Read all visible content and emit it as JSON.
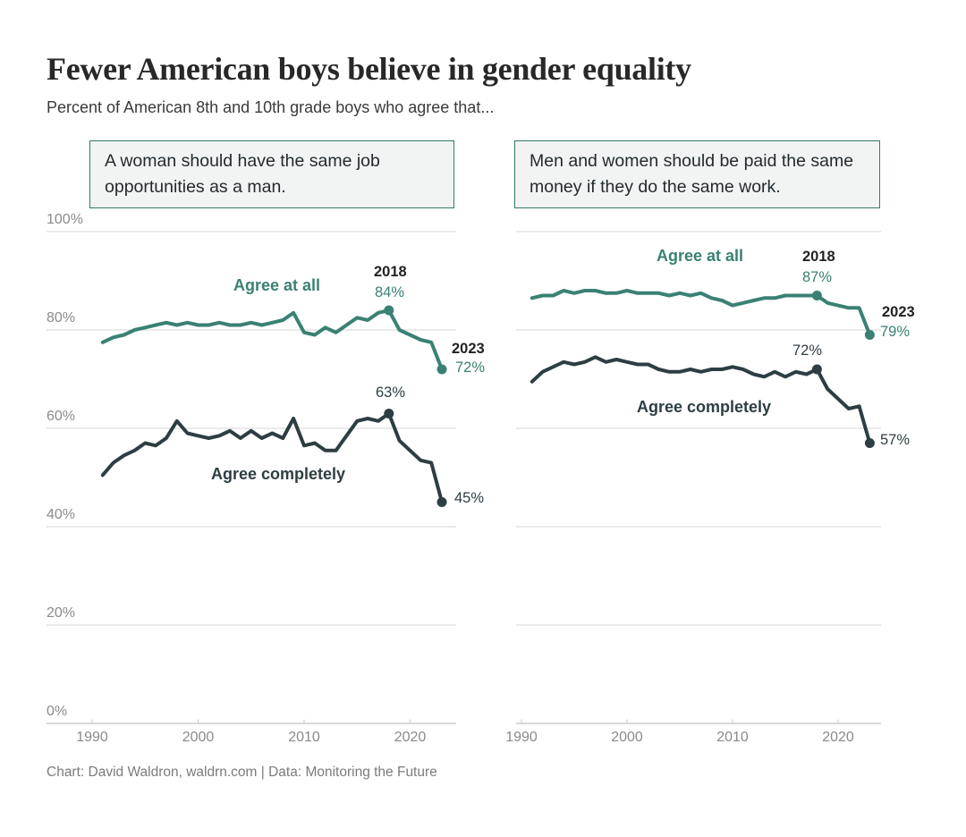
{
  "page": {
    "title": "Fewer American boys believe in gender equality",
    "subtitle": "Percent of American 8th and 10th grade boys who agree that...",
    "footer": "Chart: David Waldron, waldrn.com | Data: Monitoring the Future"
  },
  "colors": {
    "agree_at_all": "#3a8173",
    "agree_completely": "#2d3e43",
    "annotation_year": "#222222",
    "grid": "#d4d4d4",
    "baseline": "#b0b0b0",
    "tick_mark": "#c9c9c9",
    "axis_label": "#8a8a8a",
    "question_border": "#35786c",
    "question_bg": "#f2f4f4",
    "title": "#282828",
    "subtitle": "#3a3a3a",
    "footer": "#7b7b7b"
  },
  "chart_data": [
    {
      "type": "line",
      "question": "A woman should have the same job opportunities as a man.",
      "ylim": [
        0,
        100
      ],
      "yticks": [
        "100%",
        "80%",
        "60%",
        "40%",
        "20%",
        "0%"
      ],
      "xticks": [
        "1990",
        "2000",
        "2010",
        "2020"
      ],
      "x": [
        1991,
        1992,
        1993,
        1994,
        1995,
        1996,
        1997,
        1998,
        1999,
        2000,
        2001,
        2002,
        2003,
        2004,
        2005,
        2006,
        2007,
        2008,
        2009,
        2010,
        2011,
        2012,
        2013,
        2014,
        2015,
        2016,
        2017,
        2018,
        2019,
        2021,
        2022,
        2023
      ],
      "series": [
        {
          "name": "Agree at all",
          "color_key": "agree_at_all",
          "values": [
            77.5,
            78.5,
            79,
            80,
            80.5,
            81,
            81.5,
            81,
            81.5,
            81,
            81,
            81.5,
            81,
            81,
            81.5,
            81,
            81.5,
            82,
            83.5,
            79.5,
            79,
            80.5,
            79.5,
            81,
            82.5,
            82,
            83.5,
            84,
            80,
            78,
            77.5,
            72
          ],
          "annotations": {
            "peak_year": "2018",
            "peak_value": "84%",
            "end_year": "2023",
            "end_value": "72%"
          }
        },
        {
          "name": "Agree completely",
          "color_key": "agree_completely",
          "values": [
            50.5,
            53,
            54.5,
            55.5,
            57,
            56.5,
            58,
            61.5,
            59,
            58.5,
            58,
            58.5,
            59.5,
            58,
            59.5,
            58,
            59,
            58,
            62,
            56.5,
            57,
            55.5,
            55.5,
            58.5,
            61.5,
            62,
            61.5,
            63,
            57.5,
            53.5,
            53,
            45
          ],
          "annotations": {
            "peak_value": "63%",
            "end_value": "45%"
          }
        }
      ]
    },
    {
      "type": "line",
      "question": "Men and women should be paid the same money if they do the same work.",
      "ylim": [
        0,
        100
      ],
      "yticks": [
        "100%",
        "80%",
        "60%",
        "40%",
        "20%",
        "0%"
      ],
      "xticks": [
        "1990",
        "2000",
        "2010",
        "2020"
      ],
      "x": [
        1991,
        1992,
        1993,
        1994,
        1995,
        1996,
        1997,
        1998,
        1999,
        2000,
        2001,
        2002,
        2003,
        2004,
        2005,
        2006,
        2007,
        2008,
        2009,
        2010,
        2011,
        2012,
        2013,
        2014,
        2015,
        2016,
        2017,
        2018,
        2019,
        2021,
        2022,
        2023
      ],
      "series": [
        {
          "name": "Agree at all",
          "color_key": "agree_at_all",
          "values": [
            86.5,
            87,
            87,
            88,
            87.5,
            88,
            88,
            87.5,
            87.5,
            88,
            87.5,
            87.5,
            87.5,
            87,
            87.5,
            87,
            87.5,
            86.5,
            86,
            85,
            85.5,
            86,
            86.5,
            86.5,
            87,
            87,
            87,
            87,
            85.5,
            84.5,
            84.5,
            79
          ],
          "annotations": {
            "peak_year": "2018",
            "peak_value": "87%",
            "end_year": "2023",
            "end_value": "79%"
          }
        },
        {
          "name": "Agree completely",
          "color_key": "agree_completely",
          "values": [
            69.5,
            71.5,
            72.5,
            73.5,
            73,
            73.5,
            74.5,
            73.5,
            74,
            73.5,
            73,
            73,
            72,
            71.5,
            71.5,
            72,
            71.5,
            72,
            72,
            72.5,
            72,
            71,
            70.5,
            71.5,
            70.5,
            71.5,
            71,
            72,
            68,
            64,
            64.5,
            57
          ],
          "annotations": {
            "peak_value": "72%",
            "end_value": "57%"
          }
        }
      ]
    }
  ]
}
